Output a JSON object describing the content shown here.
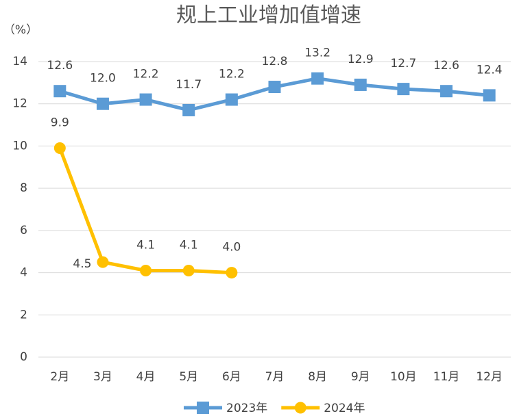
{
  "chart_data": {
    "type": "line",
    "title": "规上工业增加值增速",
    "y_label": "（%）",
    "categories": [
      "2月",
      "3月",
      "4月",
      "5月",
      "6月",
      "7月",
      "8月",
      "9月",
      "10月",
      "11月",
      "12月"
    ],
    "series": [
      {
        "name": "2023年",
        "color": "#5b9bd5",
        "marker": "square",
        "values": [
          12.6,
          12.0,
          12.2,
          11.7,
          12.2,
          12.8,
          13.2,
          12.9,
          12.7,
          12.6,
          12.4
        ],
        "value_labels": [
          "12.6",
          "12.0",
          "12.2",
          "11.7",
          "12.2",
          "12.8",
          "13.2",
          "12.9",
          "12.7",
          "12.6",
          "12.4"
        ]
      },
      {
        "name": "2024年",
        "color": "#ffc000",
        "marker": "circle",
        "values": [
          9.9,
          4.5,
          4.1,
          4.1,
          4.0,
          null,
          null,
          null,
          null,
          null,
          null
        ],
        "value_labels": [
          "9.9",
          "4.5",
          "4.1",
          "4.1",
          "4.0",
          null,
          null,
          null,
          null,
          null,
          null
        ]
      }
    ],
    "ylim": [
      0,
      14
    ],
    "yticks": [
      0,
      2,
      4,
      6,
      8,
      10,
      12,
      14
    ],
    "grid": true,
    "legend": "bottom"
  }
}
